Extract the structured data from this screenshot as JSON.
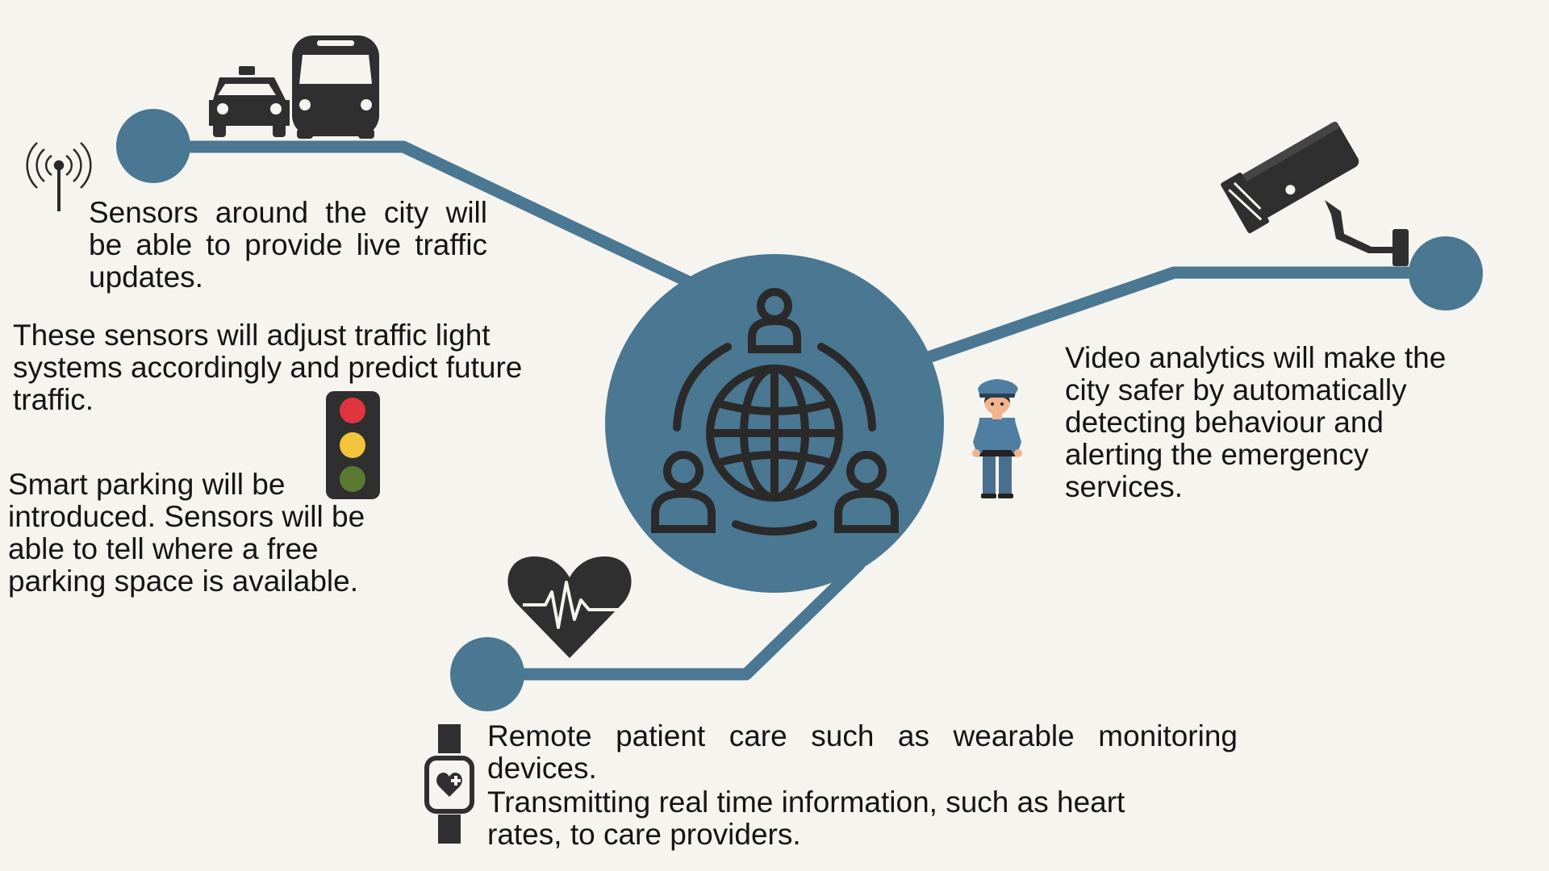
{
  "theme": {
    "background": "#f5f4ee",
    "accent": "#4a7792",
    "icon": "#2f2f2f",
    "traffic_light_red": "#e0343f",
    "traffic_light_yellow": "#f2c43c",
    "traffic_light_green": "#5a7a33"
  },
  "texts": {
    "sensors_traffic": "Sensors around the city will be able to provide live traffic updates.",
    "traffic_lights": "These sensors will adjust traffic light systems accordingly and predict future traffic.",
    "smart_parking": "Smart parking will be introduced. Sensors will be able to tell where a free parking space is available.",
    "video_analytics": "Video analytics will make the city safer by automatically detecting behaviour and alerting the emergency services.",
    "remote_care": "Remote patient care such as wearable monitoring devices.",
    "transmitting": "Transmitting real time information, such as heart rates, to care providers."
  },
  "icons": [
    "antenna-icon",
    "taxi-icon",
    "bus-icon",
    "traffic-light-icon",
    "community-globe-icon",
    "cctv-camera-icon",
    "police-officer-icon",
    "heart-pulse-icon",
    "smartwatch-icon"
  ]
}
